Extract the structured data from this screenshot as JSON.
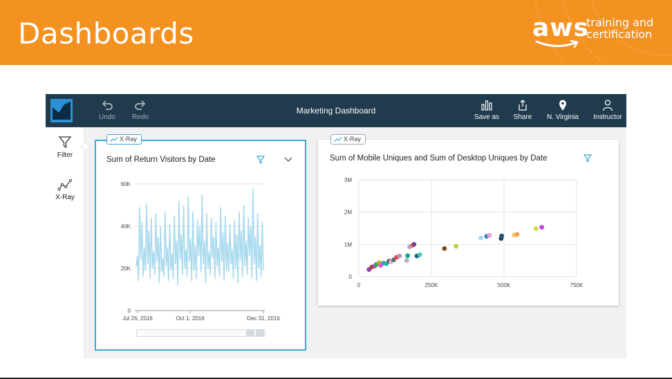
{
  "slide": {
    "title": "Dashboards",
    "logo": {
      "brand": "aws",
      "tagline_line1": "training and",
      "tagline_line2": "certification"
    }
  },
  "topbar": {
    "title": "Marketing Dashboard",
    "undo_label": "Undo",
    "redo_label": "Redo",
    "save_as_label": "Save as",
    "share_label": "Share",
    "region_label": "N. Virginia",
    "user_label": "Instructor"
  },
  "sidebar": {
    "filter_label": "Filter",
    "xray_label": "X-Ray"
  },
  "visuals": [
    {
      "tag": "X-Ray",
      "title": "Sum of Return Visitors by Date"
    },
    {
      "tag": "X-Ray",
      "title": "Sum of Mobile Uniques and Sum of Desktop Uniques by Date"
    }
  ],
  "colors": {
    "accent": "#3ea7d6",
    "header_orange": "#f39221",
    "topbar": "#1f3b4d",
    "line": "#a9daee"
  },
  "chart_data": [
    {
      "type": "line",
      "title": "Sum of Return Visitors by Date",
      "x_tick_labels": [
        "Jul 26, 2016",
        "Oct 1, 2016",
        "Dec 31, 2016"
      ],
      "y_tick_labels": [
        "0",
        "20K",
        "40K",
        "60K"
      ],
      "ylim": [
        0,
        60000
      ],
      "grid": true,
      "series": [
        {
          "values": [
            21000,
            26000,
            14000,
            49000,
            24000,
            42000,
            16000,
            30000,
            19000,
            51000,
            22000,
            38000,
            15000,
            44000,
            20000,
            28000,
            17000,
            46000,
            23000,
            35000,
            13000,
            40000,
            18000,
            25000,
            16000,
            47000,
            21000,
            30000,
            14000,
            41000,
            19000,
            27000,
            15000,
            45000,
            22000,
            33000,
            12000,
            52000,
            24000,
            36000,
            17000,
            50000,
            20000,
            29000,
            16000,
            54000,
            23000,
            34000,
            14000,
            47000,
            19000,
            31000,
            15000,
            43000,
            26000,
            40000,
            18000,
            55000,
            22000,
            33000,
            13000,
            46000,
            20000,
            28000,
            17000,
            44000,
            25000,
            35000,
            15000,
            42000,
            21000,
            30000,
            16000,
            49000,
            23000,
            37000,
            14000,
            45000,
            19000,
            32000,
            18000,
            41000,
            22000,
            29000,
            15000,
            43000,
            20000,
            36000,
            13000,
            47000,
            24000,
            38000,
            16000,
            50000,
            21000,
            33000,
            17000,
            44000,
            26000,
            40000,
            15000,
            58000,
            22000,
            35000,
            14000,
            46000,
            20000,
            31000,
            16000,
            42000,
            19000
          ]
        }
      ]
    },
    {
      "type": "scatter",
      "title": "Sum of Mobile Uniques and Sum of Desktop Uniques by Date",
      "x_tick_labels": [
        "0",
        "250K",
        "500K",
        "750K"
      ],
      "y_tick_labels": [
        "0",
        "1M",
        "2M",
        "3M"
      ],
      "xlim": [
        0,
        750000
      ],
      "ylim": [
        0,
        3000000
      ],
      "grid": true,
      "points": [
        {
          "x": 35000,
          "y": 220000,
          "color": "#8e44ad"
        },
        {
          "x": 45000,
          "y": 300000,
          "color": "#c0392b"
        },
        {
          "x": 55000,
          "y": 330000,
          "color": "#9b59b6"
        },
        {
          "x": 60000,
          "y": 380000,
          "color": "#27ae60"
        },
        {
          "x": 70000,
          "y": 430000,
          "color": "#d4ac0d"
        },
        {
          "x": 75000,
          "y": 350000,
          "color": "#e056c1"
        },
        {
          "x": 85000,
          "y": 420000,
          "color": "#3498db"
        },
        {
          "x": 95000,
          "y": 400000,
          "color": "#1abc9c"
        },
        {
          "x": 105000,
          "y": 480000,
          "color": "#2c3e50"
        },
        {
          "x": 110000,
          "y": 460000,
          "color": "#f5a3c7"
        },
        {
          "x": 120000,
          "y": 520000,
          "color": "#5d6d7e"
        },
        {
          "x": 130000,
          "y": 600000,
          "color": "#e74c3c"
        },
        {
          "x": 140000,
          "y": 640000,
          "color": "#bb8fce"
        },
        {
          "x": 165000,
          "y": 500000,
          "color": "#aab7b8"
        },
        {
          "x": 168000,
          "y": 650000,
          "color": "#17a589"
        },
        {
          "x": 175000,
          "y": 920000,
          "color": "#c39bd3"
        },
        {
          "x": 185000,
          "y": 970000,
          "color": "#e67e22"
        },
        {
          "x": 190000,
          "y": 1000000,
          "color": "#7d3c98"
        },
        {
          "x": 200000,
          "y": 640000,
          "color": "#1f618d"
        },
        {
          "x": 210000,
          "y": 680000,
          "color": "#48c9b0"
        },
        {
          "x": 295000,
          "y": 870000,
          "color": "#7b4b16"
        },
        {
          "x": 335000,
          "y": 940000,
          "color": "#b7d62e"
        },
        {
          "x": 420000,
          "y": 1200000,
          "color": "#aed6f1"
        },
        {
          "x": 440000,
          "y": 1250000,
          "color": "#2e86c1"
        },
        {
          "x": 450000,
          "y": 1280000,
          "color": "#e8a0d8"
        },
        {
          "x": 490000,
          "y": 1180000,
          "color": "#2e4053"
        },
        {
          "x": 492000,
          "y": 1260000,
          "color": "#1a5276"
        },
        {
          "x": 535000,
          "y": 1290000,
          "color": "#f8c471"
        },
        {
          "x": 545000,
          "y": 1310000,
          "color": "#f0a04b"
        },
        {
          "x": 610000,
          "y": 1490000,
          "color": "#c7e03c"
        },
        {
          "x": 630000,
          "y": 1530000,
          "color": "#c13fd6"
        }
      ]
    }
  ]
}
